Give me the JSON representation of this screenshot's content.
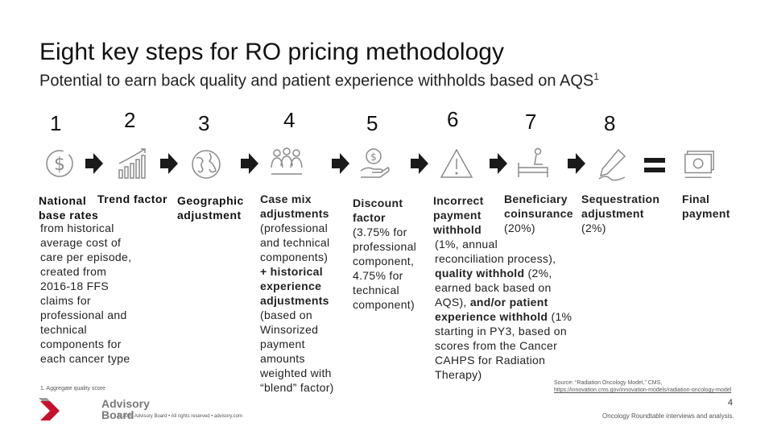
{
  "title": "Eight key steps for RO pricing methodology",
  "subtitle": "Potential to earn back quality and patient experience withholds based on AQS",
  "subtitle_sup": "1",
  "steps": [
    {
      "num": "1"
    },
    {
      "num": "2"
    },
    {
      "num": "3"
    },
    {
      "num": "4"
    },
    {
      "num": "5"
    },
    {
      "num": "6"
    },
    {
      "num": "7"
    },
    {
      "num": "8"
    }
  ],
  "col1": {
    "head_line1": "National",
    "head_line2": "base rates",
    "body": [
      "from historical",
      "average cost of",
      "care per episode,",
      "created from",
      "2016-18 FFS",
      "claims for",
      "professional and",
      "technical",
      "components for",
      "each cancer type"
    ]
  },
  "col2": {
    "head": "Trend factor"
  },
  "col3": {
    "head_line1": "Geographic",
    "head_line2": "adjustment"
  },
  "col4": {
    "head_line1": "Case mix",
    "head_line2": "adjustments",
    "body_a": [
      "(professional",
      "and technical",
      "components)"
    ],
    "bold_b": [
      "+ historical",
      "experience",
      "adjustments"
    ],
    "body_c": [
      "(based on",
      "Winsorized",
      "payment",
      "amounts",
      "weighted with",
      "“blend” factor)"
    ]
  },
  "col5": {
    "head_line1": "Discount",
    "head_line2": "factor",
    "body": [
      "(3.75% for",
      "professional",
      "component,",
      "4.75% for",
      "technical",
      "component)"
    ]
  },
  "col6": {
    "head_line1": "Incorrect",
    "head_line2": "payment",
    "head_line3": "withhold",
    "line1": "(1%, annual",
    "line2": "reconciliation process),",
    "line3_bold": "quality withhold",
    "line3_rest": " (2%,",
    "line4": "earned back based on",
    "line5_pre": "AQS), ",
    "line5_bold": "and/or patient",
    "line6_bold": "experience withhold",
    "line6_rest": " (1%",
    "line7": "starting in PY3, based on",
    "line8": "scores from the Cancer",
    "line9": "CAHPS for Radiation",
    "line10": "Therapy)"
  },
  "col7": {
    "head_line1": "Beneficiary",
    "head_line2": "coinsurance",
    "body": "(20%)"
  },
  "col8": {
    "head_line1": "Sequestration",
    "head_line2": "adjustment",
    "body": "(2%)"
  },
  "col9": {
    "head_line1": "Final",
    "head_line2": "payment"
  },
  "footnote": "1.  Aggregate quality score",
  "source_line1": "Source: “Radiation Oncology Model,” CMS,",
  "source_line2": "https://innovation.cms.gov/innovation-models/radiation-oncology-model",
  "analysis": "Oncology Roundtable interviews and analysis.",
  "page_number": "4",
  "copyright": "© 2020 Advisory Board • All rights reserved • advisory.com",
  "logo_line1": "Advisory",
  "logo_line2": "Board",
  "colors": {
    "accent": "#c8102e",
    "icon": "#8a8a8a",
    "arrow": "#1a1a1a"
  }
}
